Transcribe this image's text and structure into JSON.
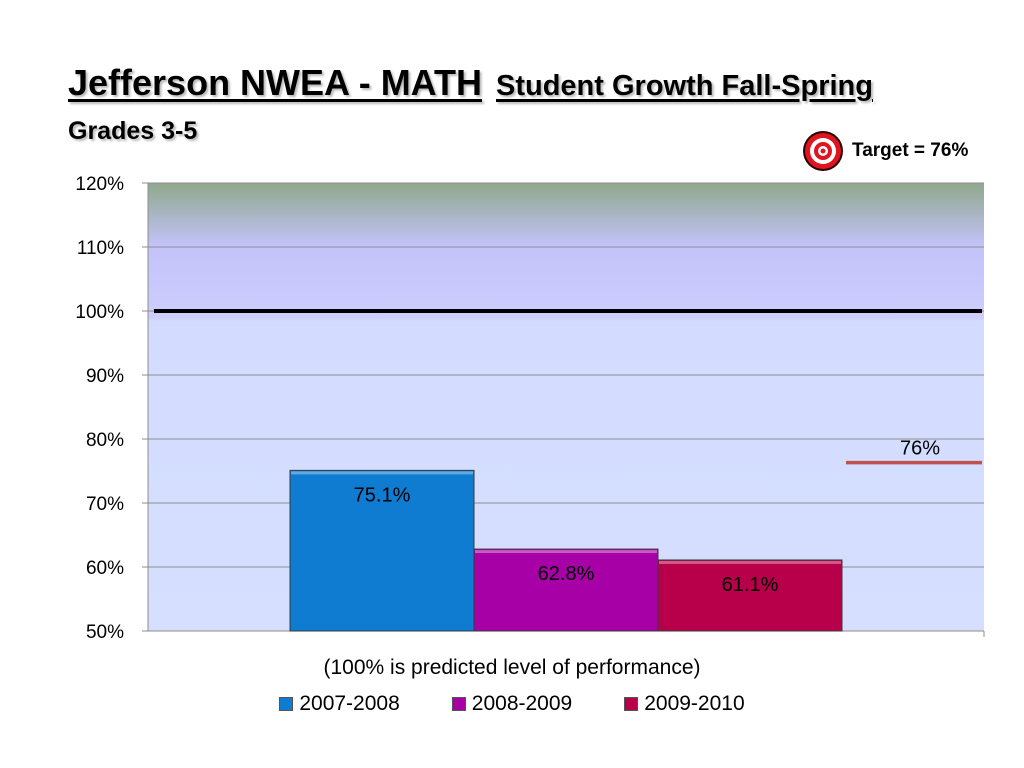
{
  "header": {
    "title": "Jefferson NWEA - MATH",
    "subtitle_inline": "Student Growth Fall-Spring",
    "grades": "Grades 3-5"
  },
  "target": {
    "label": "Target = 76%",
    "icon": "target-bullseye-icon"
  },
  "chart_data": {
    "type": "bar",
    "title": "Jefferson NWEA - MATH Student Growth Fall-Spring",
    "subtitle": "Grades 3-5",
    "xlabel": "(100% is predicted level of performance)",
    "ylabel": "",
    "ylim": [
      50,
      120
    ],
    "yticks": [
      50,
      60,
      70,
      80,
      90,
      100,
      110,
      120
    ],
    "ytick_labels": [
      "50%",
      "60%",
      "70%",
      "80%",
      "90%",
      "100%",
      "110%",
      "120%"
    ],
    "grid": true,
    "legend_position": "bottom",
    "series": [
      {
        "name": "2007-2008",
        "value": 75.1,
        "label": "75.1%",
        "color": "#0F7BD1"
      },
      {
        "name": "2008-2009",
        "value": 62.8,
        "label": "62.8%",
        "color": "#A600A6"
      },
      {
        "name": "2009-2010",
        "value": 61.1,
        "label": "61.1%",
        "color": "#B8004A"
      }
    ],
    "reference_lines": [
      {
        "value": 100,
        "color": "#000000"
      },
      {
        "value": 76,
        "label": "76%",
        "color": "#C0504D"
      }
    ]
  }
}
